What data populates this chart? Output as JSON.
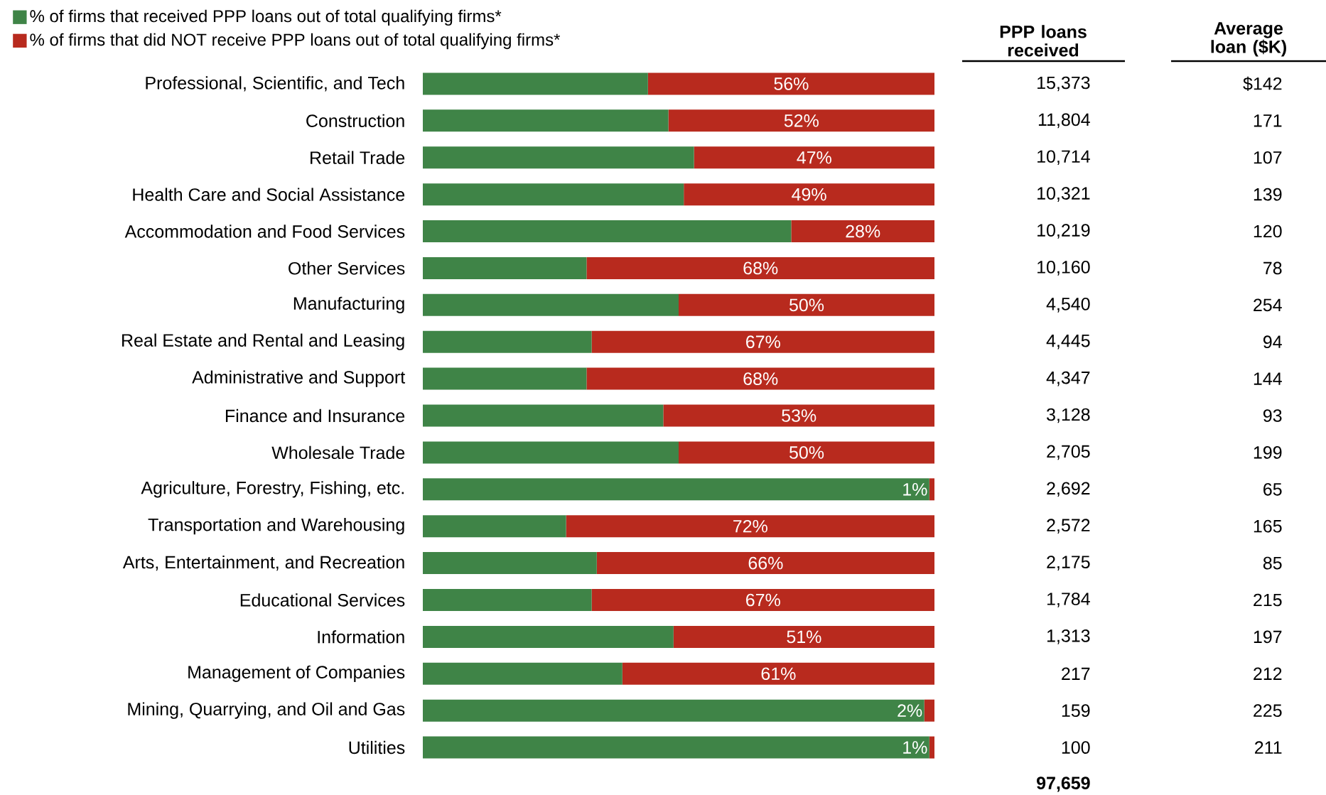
{
  "chart_data": {
    "type": "bar",
    "orientation": "horizontal",
    "stacked": true,
    "legend": "top left",
    "tick_labels": "y",
    "xlim": [
      0,
      100
    ],
    "categories": [
      "Professional, Scientific, and Tech",
      "Construction",
      "Retail Trade",
      "Health Care and Social Assistance",
      "Accommodation and Food Services",
      "Other Services",
      "Manufacturing",
      "Real Estate and Rental and Leasing",
      "Administrative and Support",
      "Finance and Insurance",
      "Wholesale Trade",
      "Agriculture, Forestry, Fishing, etc.",
      "Transportation and Warehousing",
      "Arts, Entertainment, and Recreation",
      "Educational Services",
      "Information",
      "Management of Companies",
      "Mining, Quarrying, and Oil and Gas",
      "Utilities"
    ],
    "series": [
      {
        "name": "% of firms that received PPP loans out of total qualifying firms*",
        "color": "#3f8447",
        "values": [
          44,
          48,
          53,
          51,
          72,
          32,
          50,
          33,
          32,
          47,
          50,
          99,
          28,
          34,
          33,
          49,
          39,
          98,
          99
        ]
      },
      {
        "name": "% of firms that did NOT receive PPP loans out of total qualifying firms*",
        "color": "#b82a1e",
        "values": [
          56,
          52,
          47,
          49,
          28,
          68,
          50,
          67,
          68,
          53,
          50,
          1,
          72,
          66,
          67,
          51,
          61,
          2,
          1
        ],
        "value_labels": [
          "56%",
          "52%",
          "47%",
          "49%",
          "28%",
          "68%",
          "50%",
          "67%",
          "68%",
          "53%",
          "50%",
          "1%",
          "72%",
          "66%",
          "67%",
          "51%",
          "61%",
          "2%",
          "1%"
        ]
      }
    ],
    "annotations": [
      "PPP loans received",
      "Average loan ($K)",
      "15,373",
      "$142",
      "11,804",
      "171",
      "10,714",
      "107",
      "10,321",
      "139",
      "10,219",
      "120",
      "10,160",
      "78",
      "4,540",
      "254",
      "4,445",
      "94",
      "4,347",
      "144",
      "3,128",
      "93",
      "2,705",
      "199",
      "2,692",
      "65",
      "2,572",
      "165",
      "2,175",
      "85",
      "1,784",
      "215",
      "1,313",
      "197",
      "217",
      "212",
      "159",
      "225",
      "100",
      "211",
      "97,659"
    ]
  }
}
